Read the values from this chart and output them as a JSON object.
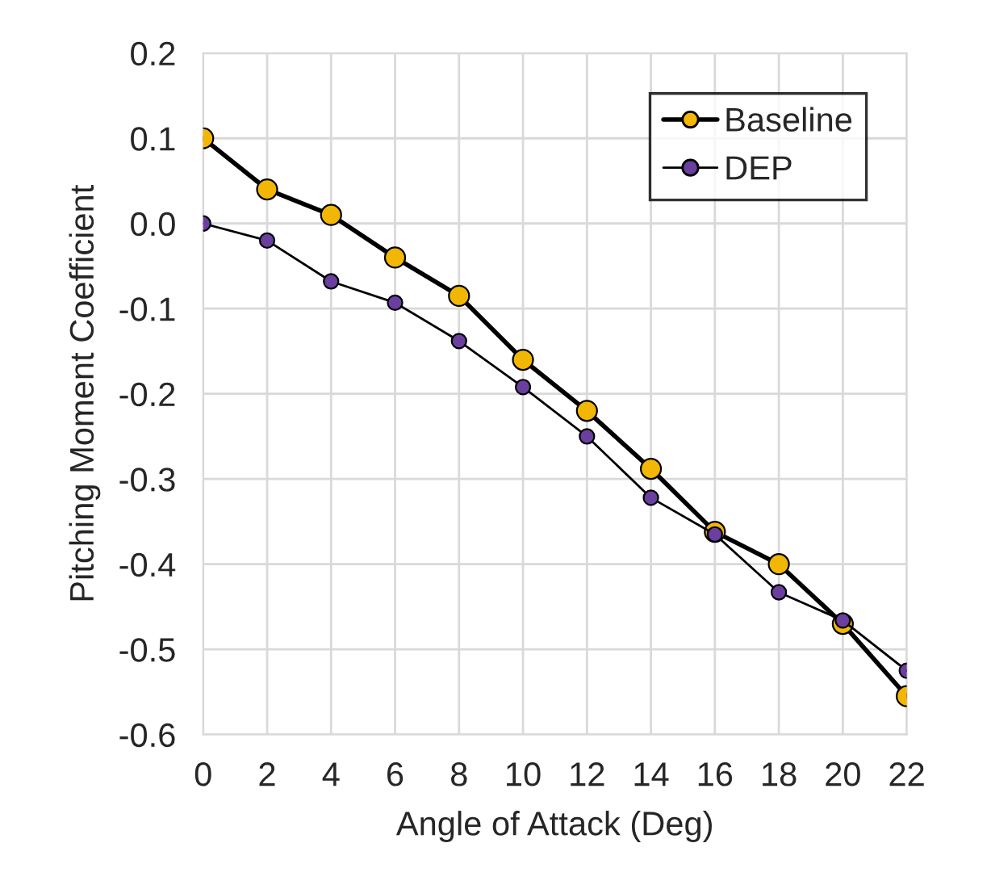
{
  "chart_data": {
    "type": "line",
    "xlabel": "Angle of Attack (Deg)",
    "ylabel": "Pitching Moment Coefficient",
    "x": [
      0,
      2,
      4,
      6,
      8,
      10,
      12,
      14,
      16,
      18,
      20,
      22
    ],
    "series": [
      {
        "name": "Baseline",
        "color": "#f2b705",
        "values": [
          0.1,
          0.04,
          0.01,
          -0.04,
          -0.085,
          -0.16,
          -0.22,
          -0.288,
          -0.362,
          -0.4,
          -0.47,
          -0.555
        ]
      },
      {
        "name": "DEP",
        "color": "#6b3fa0",
        "values": [
          0.0,
          -0.02,
          -0.068,
          -0.093,
          -0.138,
          -0.192,
          -0.25,
          -0.322,
          -0.365,
          -0.433,
          -0.466,
          -0.525
        ]
      }
    ],
    "xlim": [
      0,
      22
    ],
    "xticks": [
      0,
      2,
      4,
      6,
      8,
      10,
      12,
      14,
      16,
      18,
      20,
      22
    ],
    "ylim": [
      -0.6,
      0.2
    ],
    "yticks": [
      {
        "value": -0.6,
        "label": "-0.6"
      },
      {
        "value": -0.5,
        "label": "-0.5"
      },
      {
        "value": -0.4,
        "label": "-0.4"
      },
      {
        "value": -0.3,
        "label": "-0.3"
      },
      {
        "value": -0.2,
        "label": "-0.2"
      },
      {
        "value": -0.1,
        "label": "-0.1"
      },
      {
        "value": 0,
        "label": "0.0"
      },
      {
        "value": 0.1,
        "label": "0.1"
      },
      {
        "value": 0.2,
        "label": "0.2"
      }
    ],
    "grid": true,
    "legend": "top right",
    "marker": "circle",
    "line_style": "solid"
  }
}
